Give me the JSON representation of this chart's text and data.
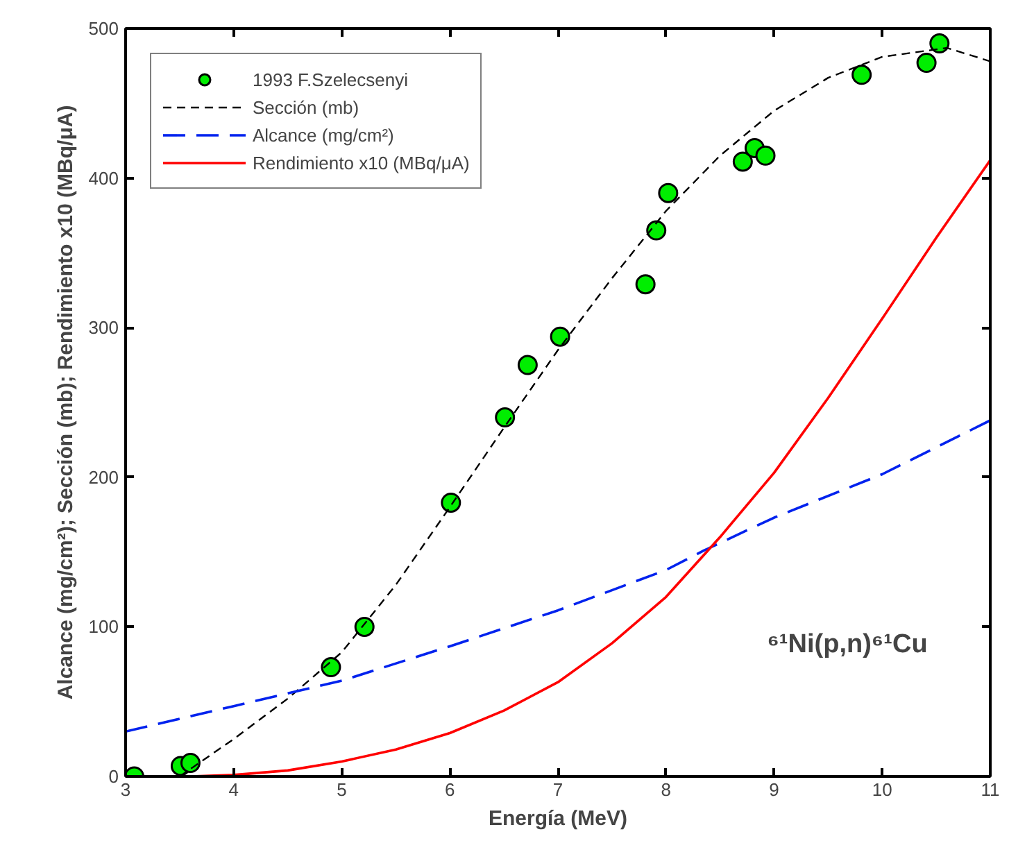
{
  "chart_data": {
    "type": "line",
    "xlabel": "Energía (MeV)",
    "ylabel": "Alcance (mg/cm²); Sección (mb); Rendimiento x10 (MBq/μA)",
    "xlim": [
      3,
      11
    ],
    "ylim": [
      0,
      500
    ],
    "xticks": [
      3,
      4,
      5,
      6,
      7,
      8,
      9,
      10,
      11
    ],
    "yticks": [
      0,
      100,
      200,
      300,
      400,
      500
    ],
    "grid": false,
    "legend": "top left",
    "annotations": [
      "⁶¹Ni(p,n)⁶¹Cu"
    ],
    "series": [
      {
        "name": "1993 F.Szelecsenyi",
        "type": "scatter",
        "color": "#00ee00",
        "marker": "circle",
        "x": [
          3.08,
          3.51,
          3.6,
          4.9,
          5.21,
          6.01,
          6.51,
          6.72,
          7.02,
          7.81,
          7.91,
          8.02,
          8.71,
          8.82,
          8.92,
          9.81,
          10.41,
          10.53
        ],
        "values": [
          0,
          7,
          9,
          73,
          100,
          183,
          240,
          275,
          294,
          329,
          365,
          390,
          411,
          420,
          415,
          469,
          477,
          490
        ]
      },
      {
        "name": "Sección (mb)",
        "color": "#000000",
        "line_style": "dashed",
        "x": [
          3.5,
          4,
          4.5,
          5,
          5.5,
          6,
          6.5,
          7,
          7.5,
          8,
          8.5,
          9,
          9.5,
          10,
          10.5,
          10.6,
          11
        ],
        "values": [
          0,
          25,
          52,
          83,
          128,
          180,
          233,
          285,
          333,
          378,
          415,
          445,
          467,
          481,
          486,
          487,
          478
        ]
      },
      {
        "name": "Alcance (mg/cm²)",
        "color": "#0022ee",
        "line_style": "dashed",
        "x": [
          3,
          4,
          5,
          6,
          7,
          8,
          8.35,
          9,
          10,
          11
        ],
        "values": [
          30,
          47,
          64,
          87,
          111,
          138,
          151,
          173,
          202,
          238
        ]
      },
      {
        "name": "Rendimiento x10 (MBq/μA)",
        "color": "#ff0000",
        "line_style": "solid",
        "x": [
          3.6,
          4,
          4.5,
          5,
          5.5,
          6,
          6.5,
          7,
          7.5,
          8,
          8.5,
          9,
          9.5,
          10,
          10.5,
          11
        ],
        "values": [
          0,
          1,
          4,
          10,
          18,
          29,
          44,
          63,
          89,
          120,
          160,
          203,
          253,
          306,
          360,
          412
        ]
      }
    ]
  }
}
